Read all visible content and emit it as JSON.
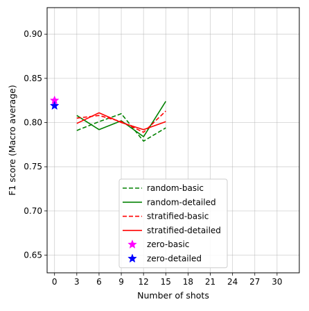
{
  "chart_data": {
    "type": "line",
    "title": "",
    "xlabel": "Number of shots",
    "ylabel": "F1 score (Macro average)",
    "xlim": [
      -1,
      33
    ],
    "ylim": [
      0.63,
      0.93
    ],
    "xticks": [
      0,
      3,
      6,
      9,
      12,
      15,
      18,
      21,
      24,
      27,
      30
    ],
    "yticks": [
      0.65,
      0.7,
      0.75,
      0.8,
      0.85,
      0.9
    ],
    "ytick_labels": [
      "0.65",
      "0.70",
      "0.75",
      "0.80",
      "0.85",
      "0.90"
    ],
    "grid": true,
    "legend_position": "lower center",
    "series": [
      {
        "name": "random-basic",
        "color": "#008000",
        "style": "dashed",
        "marker": "none",
        "x": [
          3,
          6,
          9,
          12,
          15
        ],
        "y": [
          0.791,
          0.801,
          0.81,
          0.779,
          0.794
        ]
      },
      {
        "name": "random-detailed",
        "color": "#008000",
        "style": "solid",
        "marker": "none",
        "x": [
          3,
          6,
          9,
          12,
          15
        ],
        "y": [
          0.808,
          0.792,
          0.802,
          0.784,
          0.824
        ]
      },
      {
        "name": "stratified-basic",
        "color": "#ff0000",
        "style": "dashed",
        "marker": "none",
        "x": [
          3,
          6,
          9,
          12,
          15
        ],
        "y": [
          0.805,
          0.808,
          0.801,
          0.789,
          0.813
        ]
      },
      {
        "name": "stratified-detailed",
        "color": "#ff0000",
        "style": "solid",
        "marker": "none",
        "x": [
          3,
          6,
          9,
          12,
          15
        ],
        "y": [
          0.799,
          0.811,
          0.8,
          0.792,
          0.801
        ]
      },
      {
        "name": "zero-basic",
        "color": "#ff00ff",
        "style": "none",
        "marker": "star",
        "x": [
          0
        ],
        "y": [
          0.825
        ]
      },
      {
        "name": "zero-detailed",
        "color": "#0000ff",
        "style": "none",
        "marker": "star",
        "x": [
          0
        ],
        "y": [
          0.819
        ]
      }
    ]
  }
}
